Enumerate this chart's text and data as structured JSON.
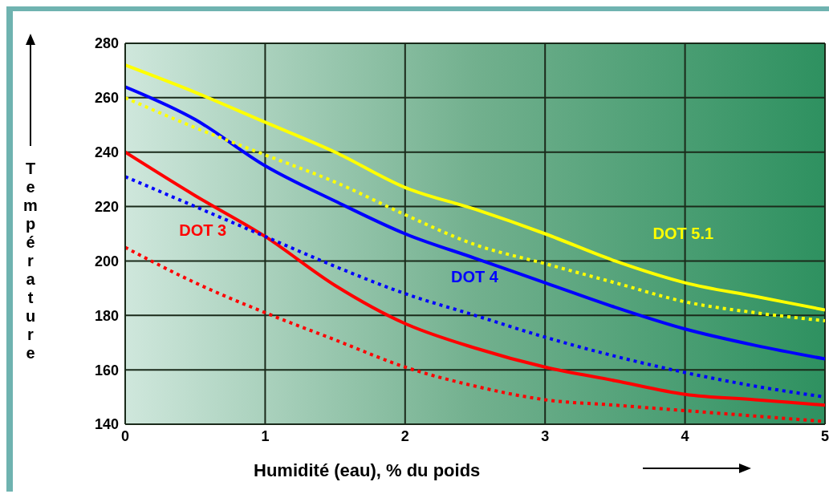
{
  "chart_data": {
    "type": "line",
    "xlabel": "Humidité (eau), % du poids",
    "ylabel": "Température",
    "x": [
      0,
      0.5,
      1,
      1.5,
      2,
      2.5,
      3,
      3.5,
      4,
      4.5,
      5
    ],
    "series": [
      {
        "name": "DOT 3",
        "color": "#ff0000",
        "line_style": "solid",
        "values": [
          240,
          224,
          209,
          191,
          177,
          168,
          161,
          156,
          151,
          149,
          147
        ]
      },
      {
        "color": "#ff0000",
        "line_style": "dotted",
        "values": [
          205,
          192,
          181,
          171,
          161,
          154,
          149,
          147,
          145,
          143,
          141
        ]
      },
      {
        "name": "DOT 4",
        "color": "#0000ff",
        "line_style": "solid",
        "values": [
          264,
          252,
          235,
          222,
          210,
          201,
          192,
          183,
          175,
          169,
          164
        ]
      },
      {
        "color": "#0000ff",
        "line_style": "dotted",
        "values": [
          231,
          220,
          209,
          198,
          188,
          180,
          172,
          165,
          159,
          154,
          150
        ]
      },
      {
        "name": "DOT 5.1",
        "color": "#ffff00",
        "line_style": "solid",
        "values": [
          272,
          262,
          251,
          240,
          227,
          219,
          210,
          200,
          192,
          187,
          182
        ]
      },
      {
        "color": "#ffff00",
        "line_style": "dotted",
        "values": [
          260,
          249,
          239,
          229,
          217,
          206,
          199,
          192,
          185,
          181,
          178
        ]
      }
    ],
    "xlim": [
      0,
      5
    ],
    "xticks": [
      0,
      1,
      2,
      3,
      4,
      5
    ],
    "ylim": [
      140,
      280
    ],
    "yticks": [
      140,
      160,
      180,
      200,
      220,
      240,
      260,
      280
    ],
    "grid": true,
    "legend": false,
    "marker": "none"
  }
}
